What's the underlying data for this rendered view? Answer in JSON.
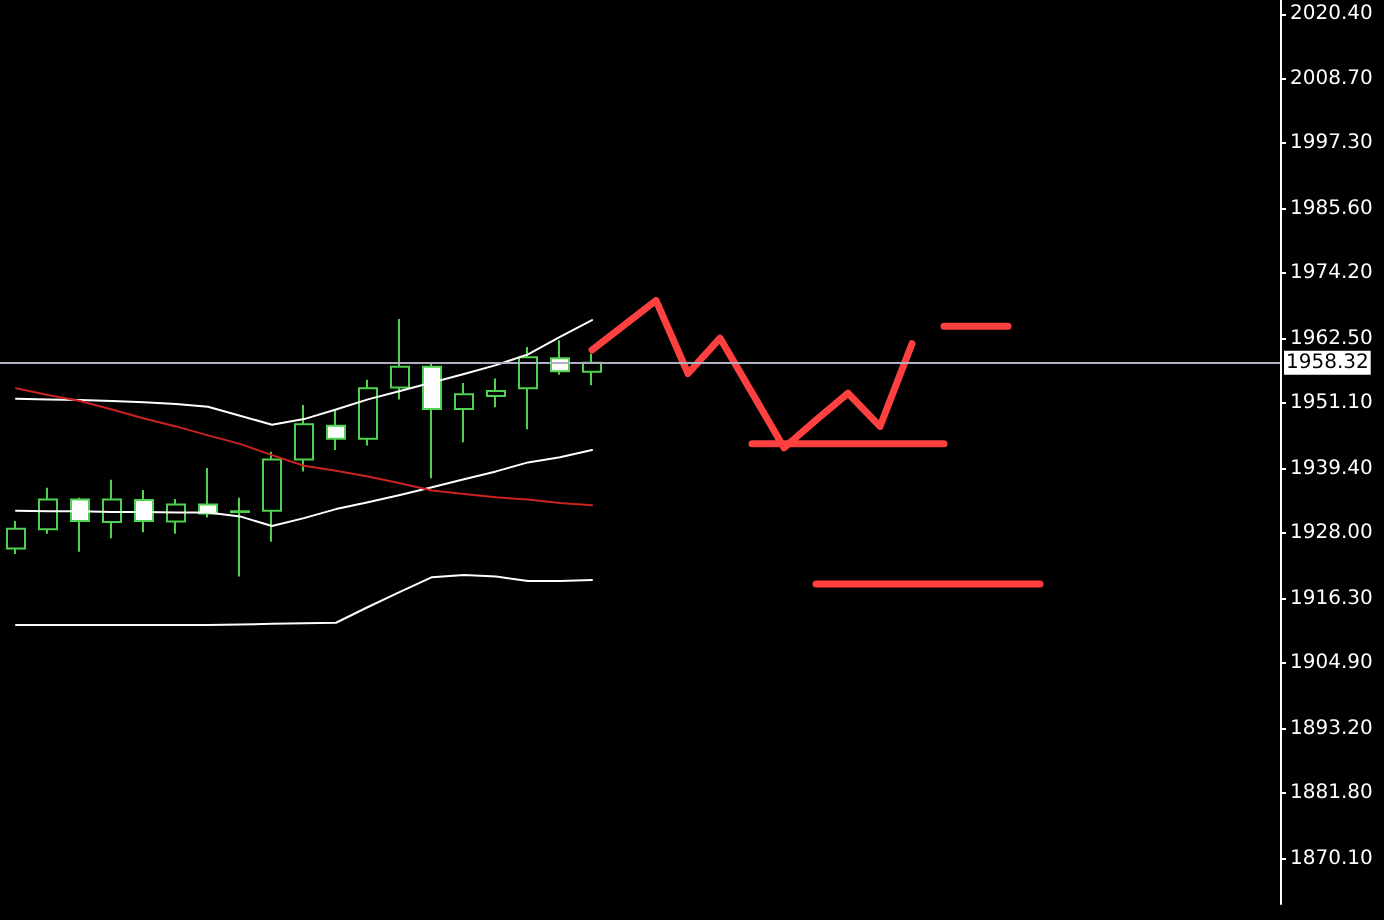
{
  "chart_data": {
    "type": "candlestick",
    "categories": [
      null,
      null,
      null,
      null,
      null,
      null,
      null,
      null,
      null,
      null,
      null,
      null,
      null,
      null,
      null,
      null,
      null,
      null,
      null,
      null,
      null,
      null,
      null,
      null,
      null,
      null,
      null,
      null,
      null,
      null,
      null,
      null,
      null,
      null,
      null,
      null,
      null,
      null,
      null,
      null
    ],
    "color": "#4fd24f",
    "ohlc": [
      [
        1925.3,
        1930.2,
        1924.3,
        1928.8
      ],
      [
        1928.7,
        1936.1,
        1927.9,
        1934.0
      ],
      [
        1934.0,
        1934.3,
        1924.7,
        1930.2
      ],
      [
        1930.0,
        1937.5,
        1927.1,
        1934.0
      ],
      [
        1933.9,
        1935.7,
        1928.2,
        1930.2
      ],
      [
        1930.1,
        1934.1,
        1927.9,
        1933.1
      ],
      [
        1933.1,
        1939.6,
        1930.8,
        1931.5
      ],
      [
        1931.8,
        1934.3,
        1920.3,
        1931.9
      ],
      [
        1932.0,
        1942.5,
        1926.5,
        1941.1
      ],
      [
        1941.1,
        1950.8,
        1939.0,
        1947.4
      ],
      [
        1947.1,
        1950.0,
        1942.8,
        1944.8
      ],
      [
        1944.8,
        1955.3,
        1943.6,
        1953.8
      ],
      [
        1953.9,
        1966.1,
        1951.8,
        1957.6
      ],
      [
        1957.6,
        1958.2,
        1937.8,
        1950.1
      ],
      [
        1950.1,
        1954.7,
        1944.2,
        1952.7
      ],
      [
        1952.4,
        1955.5,
        1950.4,
        1953.3
      ],
      [
        1953.8,
        1961.1,
        1946.5,
        1959.3
      ],
      [
        1959.1,
        1962.3,
        1956.2,
        1956.8
      ],
      [
        1956.7,
        1959.9,
        1954.3,
        1958.32
      ],
      null,
      null,
      null,
      null,
      null,
      null,
      null,
      null,
      null,
      null,
      null,
      null,
      null,
      null,
      null,
      null,
      null,
      null,
      null,
      null,
      null
    ],
    "series": [
      {
        "type": "line",
        "color": "#ffffff",
        "values": [
          1951.9,
          1951.8,
          1951.7,
          1951.5,
          1951.3,
          1951.0,
          1950.5,
          1948.9,
          1947.3,
          1948.3,
          1950.0,
          1951.8,
          1953.3,
          1954.8,
          1956.3,
          1957.9,
          1959.8,
          1962.9,
          1965.9,
          null,
          null,
          null,
          null,
          null,
          null,
          null,
          null,
          null,
          null,
          null,
          null,
          null,
          null,
          null,
          null,
          null,
          null,
          null,
          null,
          null
        ]
      },
      {
        "type": "line",
        "color": "#ffffff",
        "values": [
          1932.0,
          1931.9,
          1931.9,
          1931.8,
          1931.8,
          1931.7,
          1931.7,
          1931.0,
          1929.3,
          1930.7,
          1932.3,
          1933.5,
          1934.8,
          1936.2,
          1937.6,
          1939.0,
          1940.6,
          1941.5,
          1942.8,
          null,
          null,
          null,
          null,
          null,
          null,
          null,
          null,
          null,
          null,
          null,
          null,
          null,
          null,
          null,
          null,
          null,
          null,
          null,
          null,
          null
        ]
      },
      {
        "type": "line",
        "color": "#ffffff",
        "values": [
          1911.7,
          1911.7,
          1911.7,
          1911.7,
          1911.7,
          1911.7,
          1911.7,
          1911.8,
          1911.9,
          1912.0,
          1912.1,
          1914.9,
          1917.6,
          1920.2,
          1920.6,
          1920.3,
          1919.5,
          1919.5,
          1919.7,
          null,
          null,
          null,
          null,
          null,
          null,
          null,
          null,
          null,
          null,
          null,
          null,
          null,
          null,
          null,
          null,
          null,
          null,
          null,
          null,
          null
        ]
      },
      {
        "type": "line",
        "color": "#cc2222",
        "values": [
          1953.8,
          1952.6,
          1951.5,
          1950.0,
          1948.4,
          1947.0,
          1945.4,
          1943.9,
          1941.9,
          1940.0,
          1939.1,
          1938.1,
          1936.9,
          1935.6,
          1935.0,
          1934.4,
          1934.0,
          1933.4,
          1933.0,
          null,
          null,
          null,
          null,
          null,
          null,
          null,
          null,
          null,
          null,
          null,
          null,
          null,
          null,
          null,
          null,
          null,
          null,
          null,
          null,
          null
        ]
      },
      {
        "type": "line",
        "color": "#ff4040",
        "values": [
          null,
          null,
          null,
          null,
          null,
          null,
          null,
          null,
          null,
          null,
          null,
          null,
          null,
          null,
          null,
          null,
          null,
          null,
          1960.6,
          1965.0,
          1969.4,
          1956.4,
          1962.7,
          1953.0,
          1943.2,
          1948.1,
          1952.9,
          1947.0,
          1961.7,
          null,
          null,
          null,
          null,
          null,
          null,
          null,
          null,
          null,
          null,
          null
        ]
      },
      {
        "type": "line",
        "color": "#ff4040",
        "values": [
          null,
          null,
          null,
          null,
          null,
          null,
          null,
          null,
          null,
          null,
          null,
          null,
          null,
          null,
          null,
          null,
          null,
          null,
          null,
          null,
          null,
          null,
          null,
          1943.9,
          1943.9,
          1943.9,
          1943.9,
          1943.9,
          1943.9,
          1943.9,
          null,
          null,
          null,
          null,
          null,
          null,
          null,
          null,
          null,
          null
        ]
      },
      {
        "type": "line",
        "color": "#ff4040",
        "values": [
          null,
          null,
          null,
          null,
          null,
          null,
          null,
          null,
          null,
          null,
          null,
          null,
          null,
          null,
          null,
          null,
          null,
          null,
          null,
          null,
          null,
          null,
          null,
          null,
          null,
          1919.0,
          1919.0,
          1919.0,
          1919.0,
          1919.0,
          1919.0,
          1919.0,
          1919.0,
          null,
          null,
          null,
          null,
          null,
          null,
          null
        ]
      },
      {
        "type": "line",
        "color": "#ff4040",
        "values": [
          null,
          null,
          null,
          null,
          null,
          null,
          null,
          null,
          null,
          null,
          null,
          null,
          null,
          null,
          null,
          null,
          null,
          null,
          null,
          null,
          null,
          null,
          null,
          null,
          null,
          null,
          null,
          null,
          null,
          1964.8,
          1964.8,
          1964.8,
          null,
          null,
          null,
          null,
          null,
          null,
          null,
          null
        ]
      }
    ],
    "ylim": [
      1862.1,
      2022.8
    ],
    "yticks": [
      {
        "value": 2020.4,
        "label": "2020.40"
      },
      {
        "value": 2008.7,
        "label": "2008.70"
      },
      {
        "value": 1997.3,
        "label": "1997.30"
      },
      {
        "value": 1985.6,
        "label": "1985.60"
      },
      {
        "value": 1974.2,
        "label": "1974.20"
      },
      {
        "value": 1962.5,
        "label": "1962.50"
      },
      {
        "value": 1951.1,
        "label": "1951.10"
      },
      {
        "value": 1939.4,
        "label": "1939.40"
      },
      {
        "value": 1928.0,
        "label": "1928.00"
      },
      {
        "value": 1916.3,
        "label": "1916.30"
      },
      {
        "value": 1904.9,
        "label": "1904.90"
      },
      {
        "value": 1893.2,
        "label": "1893.20"
      },
      {
        "value": 1881.8,
        "label": "1881.80"
      },
      {
        "value": 1870.1,
        "label": "1870.10"
      }
    ],
    "ref_lines": [
      {
        "axis": "y",
        "value": 1958.32,
        "label": "1958.32",
        "color": "#b0b0c0"
      }
    ],
    "grid": false
  }
}
